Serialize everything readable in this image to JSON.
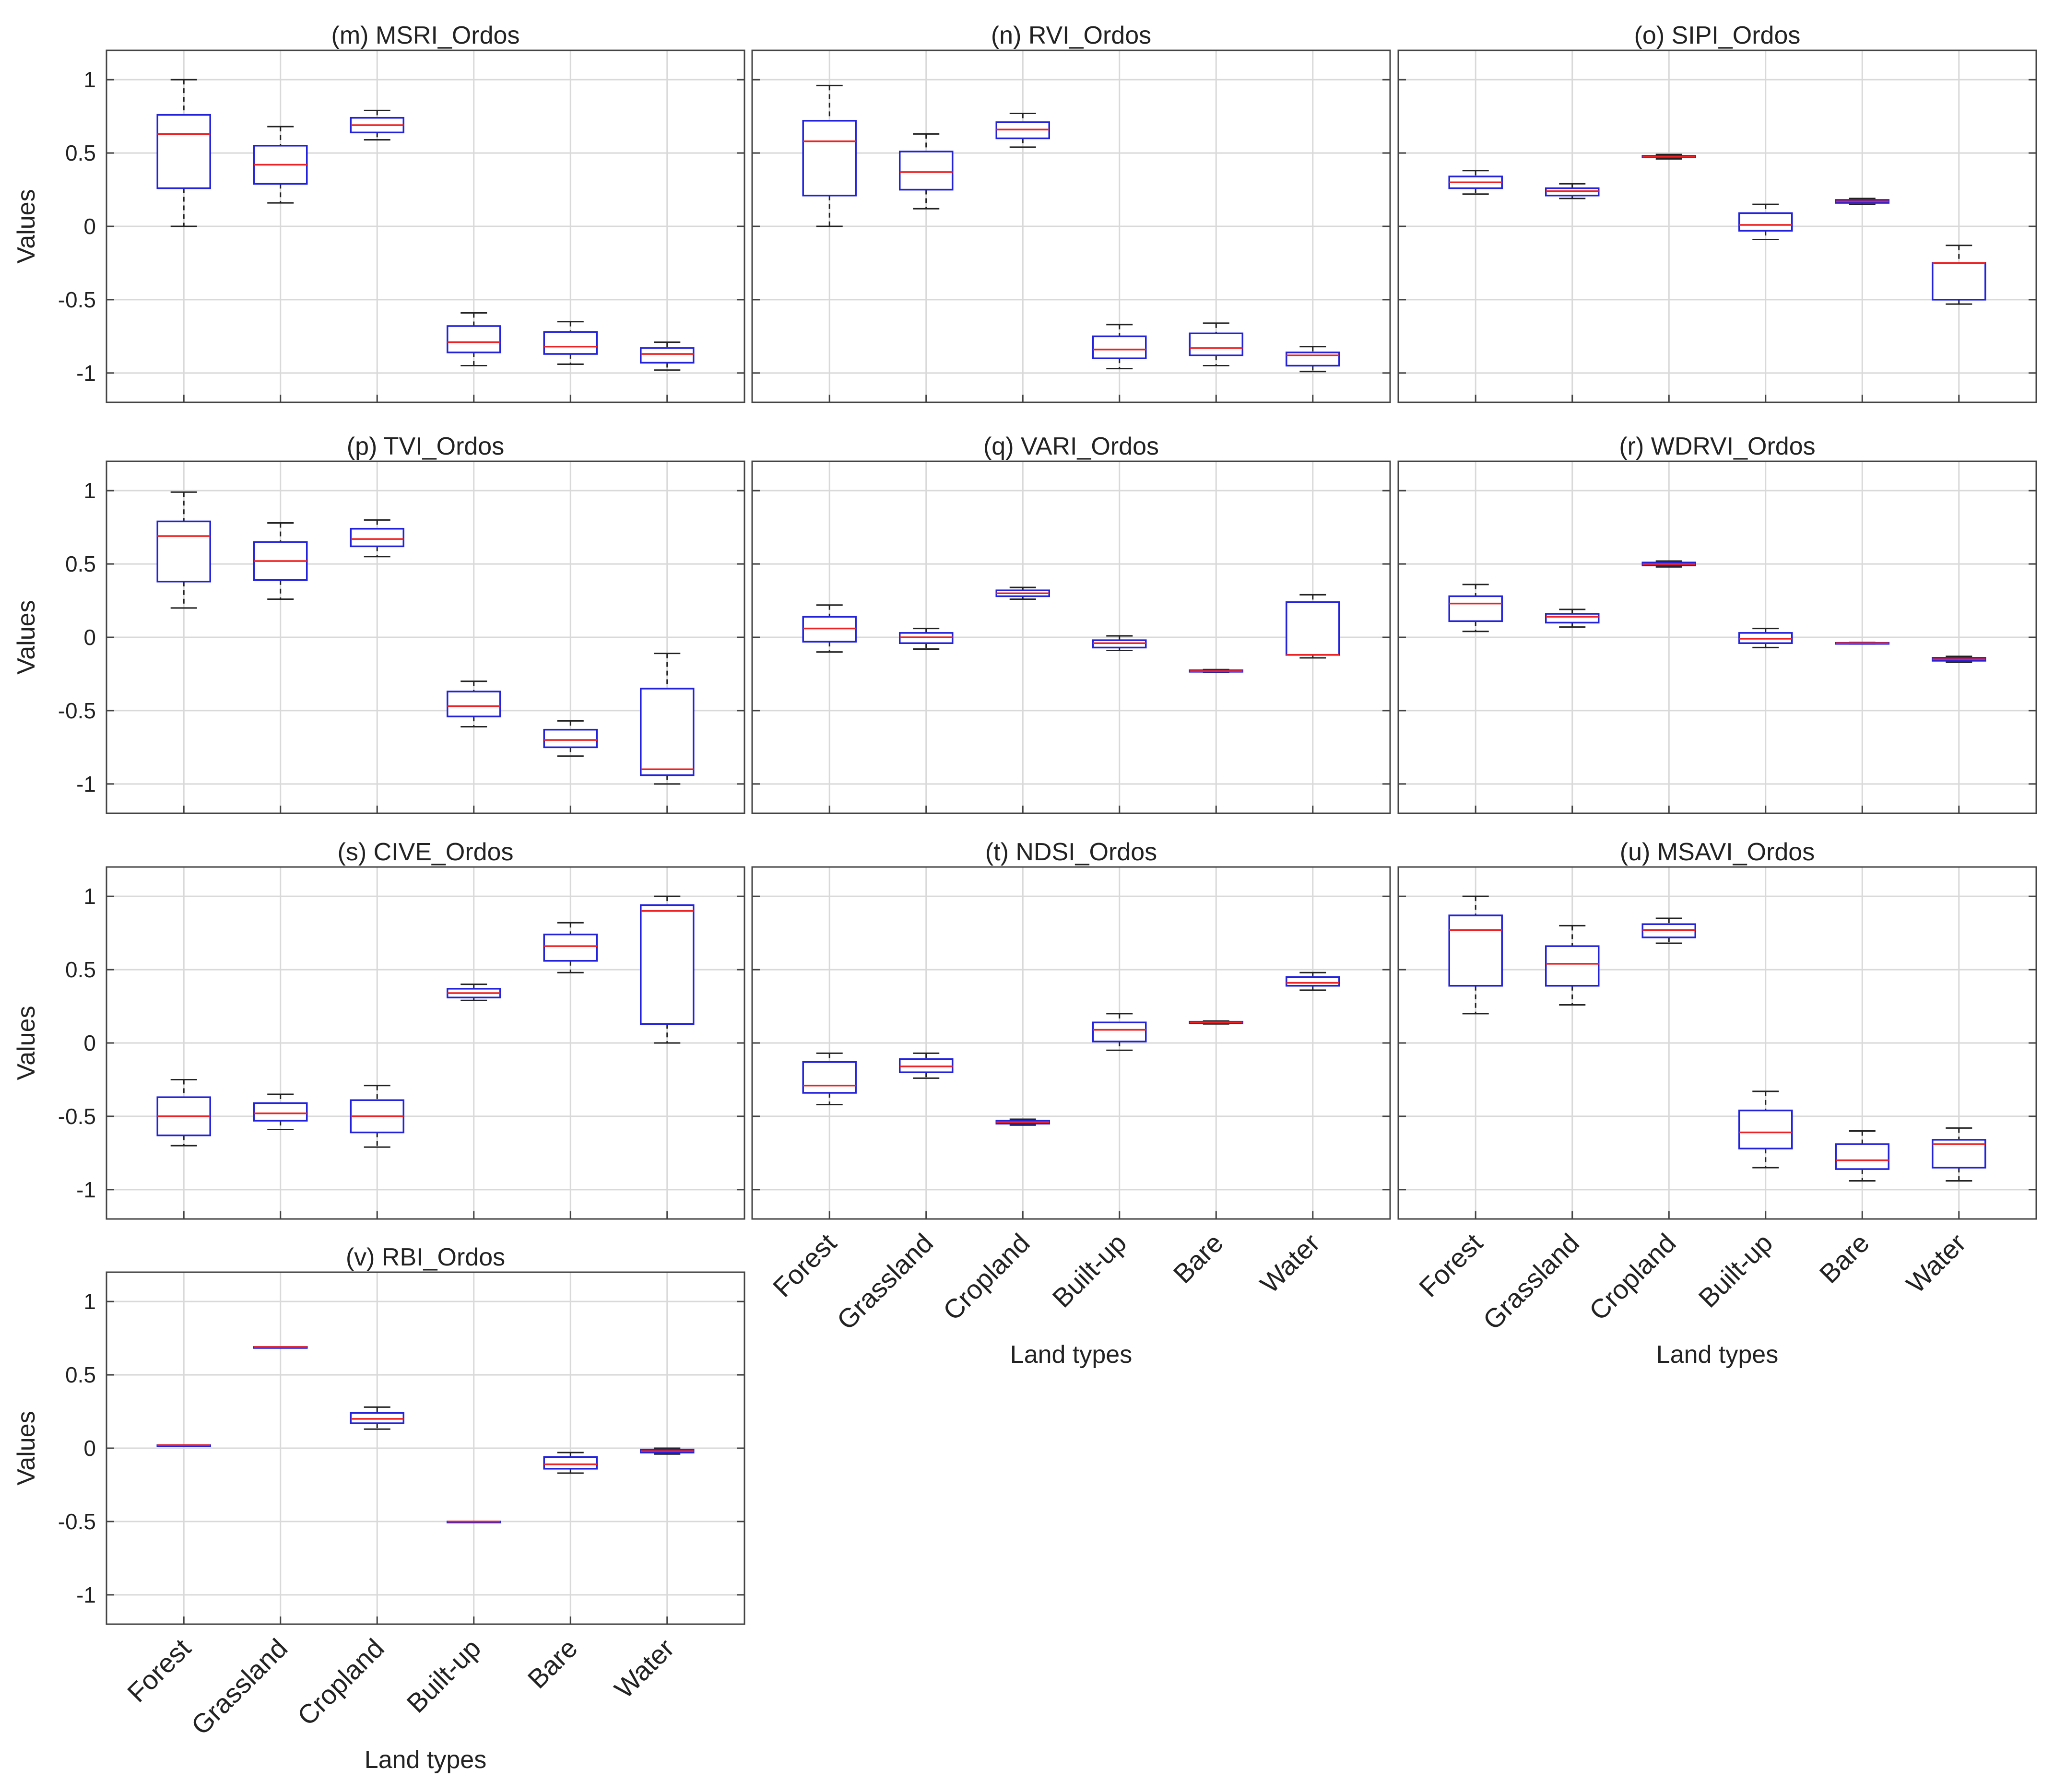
{
  "figure": {
    "ylabel": "Values",
    "xlabel": "Land types",
    "categories": [
      "Forest",
      "Grassland",
      "Cropland",
      "Built-up",
      "Bare",
      "Water"
    ],
    "yticks": [
      1,
      0.5,
      0,
      -0.5,
      -1
    ],
    "ylim": [
      -1.2,
      1.2
    ],
    "colors": {
      "box": "#2222dd",
      "median": "#ee2222",
      "whisker": "#222222",
      "grid": "#d9d9d9",
      "frame": "#444444"
    }
  },
  "chart_data": [
    {
      "type": "box",
      "title": "(m) MSRI_Ordos",
      "categories": [
        "Forest",
        "Grassland",
        "Cropland",
        "Built-up",
        "Bare",
        "Water"
      ],
      "series": [
        {
          "min": 0.0,
          "q1": 0.26,
          "median": 0.63,
          "q3": 0.76,
          "max": 1.0
        },
        {
          "min": 0.16,
          "q1": 0.29,
          "median": 0.42,
          "q3": 0.55,
          "max": 0.68
        },
        {
          "min": 0.59,
          "q1": 0.64,
          "median": 0.69,
          "q3": 0.74,
          "max": 0.79
        },
        {
          "min": -0.95,
          "q1": -0.86,
          "median": -0.79,
          "q3": -0.68,
          "max": -0.59
        },
        {
          "min": -0.94,
          "q1": -0.87,
          "median": -0.82,
          "q3": -0.72,
          "max": -0.65
        },
        {
          "min": -0.98,
          "q1": -0.93,
          "median": -0.87,
          "q3": -0.83,
          "max": -0.79
        }
      ],
      "ylim": [
        -1.2,
        1.2
      ],
      "ylabel": "Values",
      "xlabel": ""
    },
    {
      "type": "box",
      "title": "(n) RVI_Ordos",
      "categories": [
        "Forest",
        "Grassland",
        "Cropland",
        "Built-up",
        "Bare",
        "Water"
      ],
      "series": [
        {
          "min": 0.0,
          "q1": 0.21,
          "median": 0.58,
          "q3": 0.72,
          "max": 0.96
        },
        {
          "min": 0.12,
          "q1": 0.25,
          "median": 0.37,
          "q3": 0.51,
          "max": 0.63
        },
        {
          "min": 0.54,
          "q1": 0.6,
          "median": 0.66,
          "q3": 0.71,
          "max": 0.77
        },
        {
          "min": -0.97,
          "q1": -0.9,
          "median": -0.84,
          "q3": -0.75,
          "max": -0.67
        },
        {
          "min": -0.95,
          "q1": -0.88,
          "median": -0.83,
          "q3": -0.73,
          "max": -0.66
        },
        {
          "min": -0.99,
          "q1": -0.95,
          "median": -0.88,
          "q3": -0.86,
          "max": -0.82
        }
      ],
      "ylim": [
        -1.2,
        1.2
      ],
      "ylabel": "",
      "xlabel": ""
    },
    {
      "type": "box",
      "title": "(o) SIPI_Ordos",
      "categories": [
        "Forest",
        "Grassland",
        "Cropland",
        "Built-up",
        "Bare",
        "Water"
      ],
      "series": [
        {
          "min": 0.22,
          "q1": 0.26,
          "median": 0.3,
          "q3": 0.34,
          "max": 0.38
        },
        {
          "min": 0.19,
          "q1": 0.21,
          "median": 0.24,
          "q3": 0.26,
          "max": 0.29
        },
        {
          "min": 0.46,
          "q1": 0.47,
          "median": 0.475,
          "q3": 0.48,
          "max": 0.49
        },
        {
          "min": -0.09,
          "q1": -0.03,
          "median": 0.01,
          "q3": 0.09,
          "max": 0.15
        },
        {
          "min": 0.15,
          "q1": 0.16,
          "median": 0.17,
          "q3": 0.18,
          "max": 0.19
        },
        {
          "min": -0.53,
          "q1": -0.5,
          "median": -0.25,
          "q3": -0.25,
          "max": -0.13
        }
      ],
      "ylim": [
        -1.2,
        1.2
      ],
      "ylabel": "",
      "xlabel": ""
    },
    {
      "type": "box",
      "title": "(p) TVI_Ordos",
      "categories": [
        "Forest",
        "Grassland",
        "Cropland",
        "Built-up",
        "Bare",
        "Water"
      ],
      "series": [
        {
          "min": 0.2,
          "q1": 0.38,
          "median": 0.69,
          "q3": 0.79,
          "max": 0.99
        },
        {
          "min": 0.26,
          "q1": 0.39,
          "median": 0.52,
          "q3": 0.65,
          "max": 0.78
        },
        {
          "min": 0.55,
          "q1": 0.62,
          "median": 0.67,
          "q3": 0.74,
          "max": 0.8
        },
        {
          "min": -0.61,
          "q1": -0.54,
          "median": -0.47,
          "q3": -0.37,
          "max": -0.3
        },
        {
          "min": -0.81,
          "q1": -0.75,
          "median": -0.7,
          "q3": -0.63,
          "max": -0.57
        },
        {
          "min": -1.0,
          "q1": -0.94,
          "median": -0.9,
          "q3": -0.35,
          "max": -0.11
        }
      ],
      "ylim": [
        -1.2,
        1.2
      ],
      "ylabel": "Values",
      "xlabel": ""
    },
    {
      "type": "box",
      "title": "(q) VARI_Ordos",
      "categories": [
        "Forest",
        "Grassland",
        "Cropland",
        "Built-up",
        "Bare",
        "Water"
      ],
      "series": [
        {
          "min": -0.1,
          "q1": -0.03,
          "median": 0.06,
          "q3": 0.14,
          "max": 0.22
        },
        {
          "min": -0.08,
          "q1": -0.04,
          "median": 0.0,
          "q3": 0.03,
          "max": 0.06
        },
        {
          "min": 0.26,
          "q1": 0.28,
          "median": 0.3,
          "q3": 0.32,
          "max": 0.34
        },
        {
          "min": -0.09,
          "q1": -0.07,
          "median": -0.04,
          "q3": -0.02,
          "max": 0.01
        },
        {
          "min": -0.24,
          "q1": -0.235,
          "median": -0.23,
          "q3": -0.225,
          "max": -0.22
        },
        {
          "min": -0.14,
          "q1": -0.12,
          "median": -0.12,
          "q3": 0.24,
          "max": 0.29
        }
      ],
      "ylim": [
        -1.2,
        1.2
      ],
      "ylabel": "",
      "xlabel": ""
    },
    {
      "type": "box",
      "title": "(r) WDRVI_Ordos",
      "categories": [
        "Forest",
        "Grassland",
        "Cropland",
        "Built-up",
        "Bare",
        "Water"
      ],
      "series": [
        {
          "min": 0.04,
          "q1": 0.11,
          "median": 0.23,
          "q3": 0.28,
          "max": 0.36
        },
        {
          "min": 0.07,
          "q1": 0.1,
          "median": 0.14,
          "q3": 0.16,
          "max": 0.19
        },
        {
          "min": 0.48,
          "q1": 0.49,
          "median": 0.5,
          "q3": 0.51,
          "max": 0.52
        },
        {
          "min": -0.07,
          "q1": -0.04,
          "median": -0.01,
          "q3": 0.03,
          "max": 0.06
        },
        {
          "min": -0.045,
          "q1": -0.042,
          "median": -0.04,
          "q3": -0.038,
          "max": -0.035
        },
        {
          "min": -0.17,
          "q1": -0.16,
          "median": -0.15,
          "q3": -0.14,
          "max": -0.13
        }
      ],
      "ylim": [
        -1.2,
        1.2
      ],
      "ylabel": "",
      "xlabel": ""
    },
    {
      "type": "box",
      "title": "(s) CIVE_Ordos",
      "categories": [
        "Forest",
        "Grassland",
        "Cropland",
        "Built-up",
        "Bare",
        "Water"
      ],
      "series": [
        {
          "min": -0.7,
          "q1": -0.63,
          "median": -0.5,
          "q3": -0.37,
          "max": -0.25
        },
        {
          "min": -0.59,
          "q1": -0.53,
          "median": -0.48,
          "q3": -0.41,
          "max": -0.35
        },
        {
          "min": -0.71,
          "q1": -0.61,
          "median": -0.5,
          "q3": -0.39,
          "max": -0.29
        },
        {
          "min": 0.29,
          "q1": 0.31,
          "median": 0.34,
          "q3": 0.37,
          "max": 0.4
        },
        {
          "min": 0.48,
          "q1": 0.56,
          "median": 0.66,
          "q3": 0.74,
          "max": 0.82
        },
        {
          "min": 0.0,
          "q1": 0.13,
          "median": 0.9,
          "q3": 0.94,
          "max": 1.0
        }
      ],
      "ylim": [
        -1.2,
        1.2
      ],
      "ylabel": "Values",
      "xlabel": ""
    },
    {
      "type": "box",
      "title": "(t) NDSI_Ordos",
      "categories": [
        "Forest",
        "Grassland",
        "Cropland",
        "Built-up",
        "Bare",
        "Water"
      ],
      "series": [
        {
          "min": -0.42,
          "q1": -0.34,
          "median": -0.29,
          "q3": -0.13,
          "max": -0.07
        },
        {
          "min": -0.24,
          "q1": -0.2,
          "median": -0.16,
          "q3": -0.11,
          "max": -0.07
        },
        {
          "min": -0.56,
          "q1": -0.55,
          "median": -0.54,
          "q3": -0.53,
          "max": -0.52
        },
        {
          "min": -0.05,
          "q1": 0.01,
          "median": 0.09,
          "q3": 0.14,
          "max": 0.2
        },
        {
          "min": 0.13,
          "q1": 0.135,
          "median": 0.14,
          "q3": 0.145,
          "max": 0.15
        },
        {
          "min": 0.36,
          "q1": 0.39,
          "median": 0.41,
          "q3": 0.45,
          "max": 0.48
        }
      ],
      "ylim": [
        -1.2,
        1.2
      ],
      "ylabel": "",
      "xlabel": "Land types"
    },
    {
      "type": "box",
      "title": "(u) MSAVI_Ordos",
      "categories": [
        "Forest",
        "Grassland",
        "Cropland",
        "Built-up",
        "Bare",
        "Water"
      ],
      "series": [
        {
          "min": 0.2,
          "q1": 0.39,
          "median": 0.77,
          "q3": 0.87,
          "max": 1.0
        },
        {
          "min": 0.26,
          "q1": 0.39,
          "median": 0.54,
          "q3": 0.66,
          "max": 0.8
        },
        {
          "min": 0.68,
          "q1": 0.72,
          "median": 0.77,
          "q3": 0.81,
          "max": 0.85
        },
        {
          "min": -0.85,
          "q1": -0.72,
          "median": -0.61,
          "q3": -0.46,
          "max": -0.33
        },
        {
          "min": -0.94,
          "q1": -0.86,
          "median": -0.8,
          "q3": -0.69,
          "max": -0.6
        },
        {
          "min": -0.94,
          "q1": -0.85,
          "median": -0.69,
          "q3": -0.66,
          "max": -0.58
        }
      ],
      "ylim": [
        -1.2,
        1.2
      ],
      "ylabel": "",
      "xlabel": "Land types"
    },
    {
      "type": "box",
      "title": "(v) RBI_Ordos",
      "categories": [
        "Forest",
        "Grassland",
        "Cropland",
        "Built-up",
        "Bare",
        "Water"
      ],
      "series": [
        {
          "min": 0.02,
          "q1": 0.02,
          "median": 0.02,
          "q3": 0.02,
          "max": 0.02
        },
        {
          "min": 0.69,
          "q1": 0.69,
          "median": 0.69,
          "q3": 0.69,
          "max": 0.69
        },
        {
          "min": 0.13,
          "q1": 0.17,
          "median": 0.2,
          "q3": 0.24,
          "max": 0.28
        },
        {
          "min": -0.5,
          "q1": -0.5,
          "median": -0.5,
          "q3": -0.5,
          "max": -0.5
        },
        {
          "min": -0.17,
          "q1": -0.14,
          "median": -0.11,
          "q3": -0.06,
          "max": -0.03
        },
        {
          "min": -0.04,
          "q1": -0.03,
          "median": -0.02,
          "q3": -0.01,
          "max": 0.0
        }
      ],
      "ylim": [
        -1.2,
        1.2
      ],
      "ylabel": "Values",
      "xlabel": "Land types"
    }
  ]
}
